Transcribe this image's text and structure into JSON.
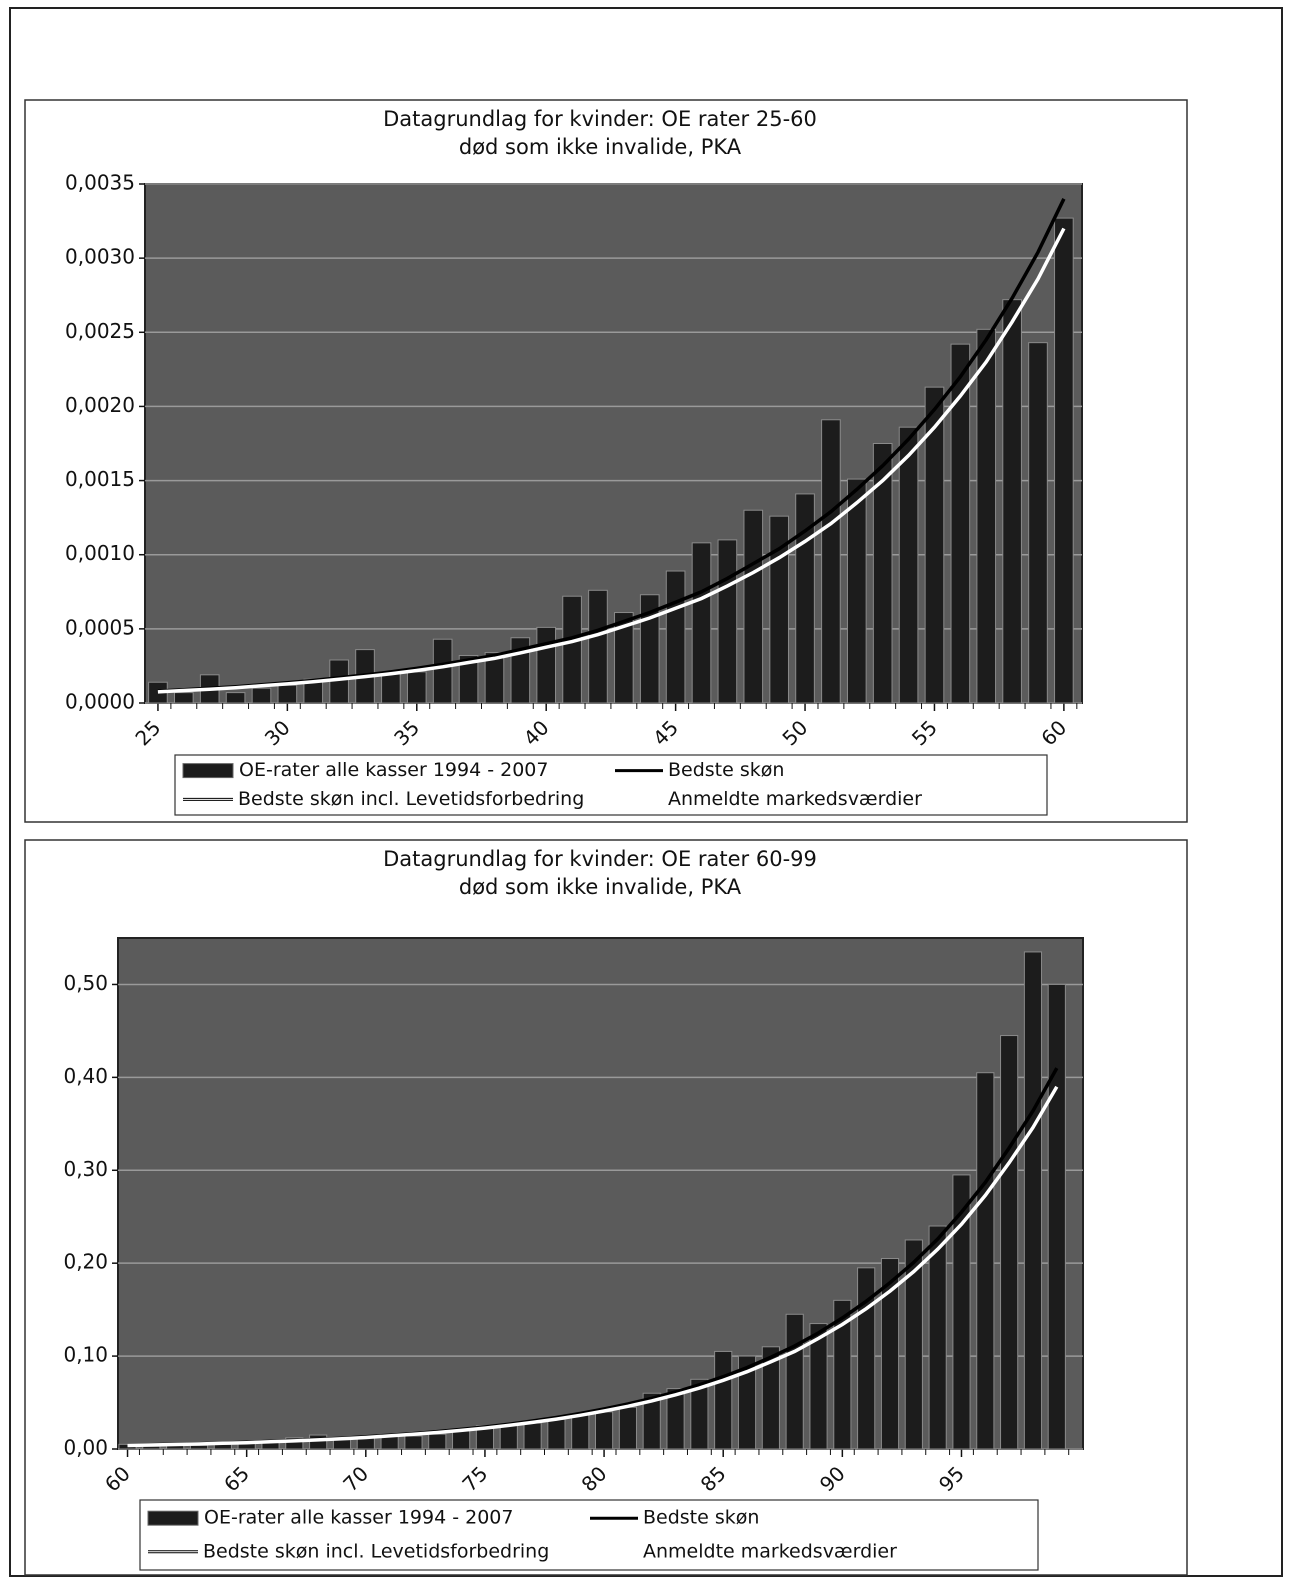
{
  "chart_data": [
    {
      "type": "bar-line",
      "title": "Datagrundlag for kvinder: OE rater 25-60",
      "subtitle": "død som ikke invalide, PKA",
      "x": [
        25,
        26,
        27,
        28,
        29,
        30,
        31,
        32,
        33,
        34,
        35,
        36,
        37,
        38,
        39,
        40,
        41,
        42,
        43,
        44,
        45,
        46,
        47,
        48,
        49,
        50,
        51,
        52,
        53,
        54,
        55,
        56,
        57,
        58,
        59,
        60
      ],
      "xlim": [
        24.5,
        60.7
      ],
      "xticks": [
        25,
        30,
        35,
        40,
        45,
        50,
        55,
        60
      ],
      "ylim": [
        0,
        0.0035
      ],
      "yticks": [
        {
          "value": 0,
          "label": "0,0000"
        },
        {
          "value": 0.0005,
          "label": "0,0005"
        },
        {
          "value": 0.001,
          "label": "0,0010"
        },
        {
          "value": 0.0015,
          "label": "0,0015"
        },
        {
          "value": 0.002,
          "label": "0,0020"
        },
        {
          "value": 0.0025,
          "label": "0,0025"
        },
        {
          "value": 0.003,
          "label": "0,0030"
        },
        {
          "value": 0.0035,
          "label": "0,0035"
        }
      ],
      "grid": true,
      "series": [
        {
          "name": "OE-rater alle kasser 1994 - 2007",
          "kind": "bar",
          "color": "#1c1c1c",
          "values": [
            0.00014,
            7e-05,
            0.00019,
            7e-05,
            0.0001,
            0.00012,
            0.00016,
            0.00029,
            0.00036,
            0.00021,
            0.00021,
            0.00043,
            0.00032,
            0.00034,
            0.00044,
            0.00051,
            0.00072,
            0.00076,
            0.00061,
            0.00073,
            0.00089,
            0.00108,
            0.0011,
            0.0013,
            0.00126,
            0.00141,
            0.00191,
            0.00151,
            0.00175,
            0.00186,
            0.00213,
            0.00242,
            0.00252,
            0.00272,
            0.00243,
            0.00327
          ]
        },
        {
          "name": "Bedste skøn",
          "kind": "line",
          "color": "#000000",
          "values": [
            8e-05,
            8.9e-05,
            9.9e-05,
            0.00011,
            0.000123,
            0.000137,
            0.000152,
            0.00017,
            0.000189,
            0.00021,
            0.000233,
            0.00026,
            0.00029,
            0.00032,
            0.00036,
            0.0004,
            0.00044,
            0.00049,
            0.00055,
            0.00061,
            0.00068,
            0.00075,
            0.00084,
            0.00094,
            0.00104,
            0.00116,
            0.00129,
            0.00144,
            0.0016,
            0.00178,
            0.00198,
            0.0022,
            0.00245,
            0.00273,
            0.00304,
            0.0034
          ]
        },
        {
          "name": "Bedste skøn incl. Levetidsforbedring",
          "kind": "line",
          "color": "#ffffff",
          "values": [
            7.5e-05,
            8.4e-05,
            9.3e-05,
            0.000103,
            0.000116,
            0.000129,
            0.000143,
            0.00016,
            0.000178,
            0.000197,
            0.000219,
            0.000244,
            0.000273,
            0.000301,
            0.000338,
            0.000376,
            0.000414,
            0.000461,
            0.000517,
            0.000573,
            0.000639,
            0.000705,
            0.00079,
            0.00088,
            0.00098,
            0.00109,
            0.00121,
            0.00135,
            0.0015,
            0.00167,
            0.00186,
            0.00207,
            0.0023,
            0.00257,
            0.00286,
            0.0032
          ]
        }
      ],
      "extra_legend_entries": [
        "Anmeldte markedsværdier"
      ]
    },
    {
      "type": "bar-line",
      "title": "Datagrundlag for kvinder: OE rater 60-99",
      "subtitle": "død som ikke invalide, PKA",
      "x": [
        60,
        61,
        62,
        63,
        64,
        65,
        66,
        67,
        68,
        69,
        70,
        71,
        72,
        73,
        74,
        75,
        76,
        77,
        78,
        79,
        80,
        81,
        82,
        83,
        84,
        85,
        86,
        87,
        88,
        89,
        90,
        91,
        92,
        93,
        94,
        95,
        96,
        97,
        98,
        99
      ],
      "xlim": [
        59.6,
        100.1
      ],
      "xticks": [
        60,
        65,
        70,
        75,
        80,
        85,
        90,
        95
      ],
      "ylim": [
        0,
        0.55
      ],
      "yticks": [
        {
          "value": 0,
          "label": "0,00"
        },
        {
          "value": 0.1,
          "label": "0,10"
        },
        {
          "value": 0.2,
          "label": "0,20"
        },
        {
          "value": 0.3,
          "label": "0,30"
        },
        {
          "value": 0.4,
          "label": "0,40"
        },
        {
          "value": 0.5,
          "label": "0,50"
        }
      ],
      "grid": true,
      "series": [
        {
          "name": "OE-rater alle kasser 1994 - 2007",
          "kind": "bar",
          "color": "#1c1c1c",
          "values": [
            0.005,
            0.003,
            0.004,
            0.004,
            0.005,
            0.007,
            0.008,
            0.012,
            0.015,
            0.01,
            0.012,
            0.014,
            0.014,
            0.016,
            0.02,
            0.025,
            0.026,
            0.028,
            0.032,
            0.038,
            0.04,
            0.045,
            0.06,
            0.065,
            0.075,
            0.105,
            0.1,
            0.11,
            0.145,
            0.135,
            0.16,
            0.195,
            0.205,
            0.225,
            0.24,
            0.295,
            0.405,
            0.445,
            0.535,
            0.5
          ]
        },
        {
          "name": "Bedste skøn",
          "kind": "line",
          "color": "#000000",
          "values": [
            0.004,
            0.0045,
            0.0051,
            0.0057,
            0.0064,
            0.0072,
            0.0082,
            0.0092,
            0.0103,
            0.0116,
            0.0131,
            0.0148,
            0.0166,
            0.0187,
            0.0211,
            0.0237,
            0.0267,
            0.0301,
            0.0339,
            0.0382,
            0.043,
            0.0484,
            0.0545,
            0.0614,
            0.0691,
            0.0778,
            0.0876,
            0.0988,
            0.111,
            0.125,
            0.141,
            0.159,
            0.179,
            0.201,
            0.226,
            0.255,
            0.287,
            0.324,
            0.364,
            0.41
          ]
        },
        {
          "name": "Bedste skøn incl. Levetidsforbedring",
          "kind": "line",
          "color": "#ffffff",
          "values": [
            0.0038,
            0.0043,
            0.0048,
            0.0054,
            0.0061,
            0.0068,
            0.0078,
            0.0087,
            0.0098,
            0.011,
            0.0124,
            0.0141,
            0.0158,
            0.0178,
            0.02,
            0.0225,
            0.0254,
            0.0286,
            0.0322,
            0.0363,
            0.0409,
            0.046,
            0.0518,
            0.0583,
            0.0656,
            0.0739,
            0.0832,
            0.0939,
            0.105,
            0.119,
            0.134,
            0.151,
            0.17,
            0.191,
            0.215,
            0.242,
            0.273,
            0.308,
            0.346,
            0.39
          ]
        }
      ],
      "extra_legend_entries": [
        "Anmeldte markedsværdier"
      ]
    }
  ]
}
